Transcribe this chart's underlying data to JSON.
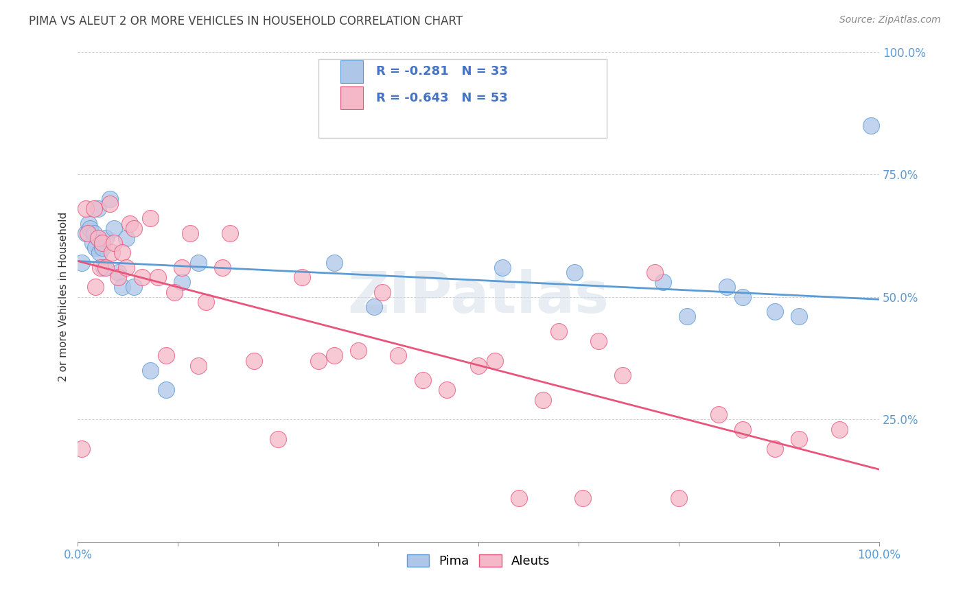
{
  "title": "PIMA VS ALEUT 2 OR MORE VEHICLES IN HOUSEHOLD CORRELATION CHART",
  "source": "Source: ZipAtlas.com",
  "ylabel": "2 or more Vehicles in Household",
  "watermark": "ZIPatlas",
  "pima_color": "#aec6e8",
  "aleut_color": "#f5b8c8",
  "pima_line_color": "#5b9bd5",
  "aleut_line_color": "#e8547a",
  "legend_text_color": "#4472c4",
  "pima_R": -0.281,
  "pima_N": 33,
  "aleut_R": -0.643,
  "aleut_N": 53,
  "xlim": [
    0,
    1
  ],
  "ylim": [
    0,
    1
  ],
  "xticks": [
    0,
    0.125,
    0.25,
    0.375,
    0.5,
    0.625,
    0.75,
    0.875,
    1.0
  ],
  "yticks": [
    0,
    0.25,
    0.5,
    0.75,
    1.0
  ],
  "pima_x": [
    0.005,
    0.01,
    0.013,
    0.015,
    0.018,
    0.02,
    0.022,
    0.025,
    0.027,
    0.03,
    0.032,
    0.035,
    0.04,
    0.045,
    0.05,
    0.055,
    0.06,
    0.07,
    0.09,
    0.11,
    0.13,
    0.15,
    0.32,
    0.37,
    0.53,
    0.62,
    0.73,
    0.76,
    0.81,
    0.83,
    0.87,
    0.9,
    0.99
  ],
  "pima_y": [
    0.57,
    0.63,
    0.65,
    0.64,
    0.61,
    0.63,
    0.6,
    0.68,
    0.59,
    0.6,
    0.56,
    0.62,
    0.7,
    0.64,
    0.55,
    0.52,
    0.62,
    0.52,
    0.35,
    0.31,
    0.53,
    0.57,
    0.57,
    0.48,
    0.56,
    0.55,
    0.53,
    0.46,
    0.52,
    0.5,
    0.47,
    0.46,
    0.85
  ],
  "aleut_x": [
    0.005,
    0.01,
    0.012,
    0.02,
    0.022,
    0.025,
    0.028,
    0.03,
    0.035,
    0.04,
    0.042,
    0.045,
    0.05,
    0.055,
    0.06,
    0.065,
    0.07,
    0.08,
    0.09,
    0.1,
    0.11,
    0.12,
    0.13,
    0.14,
    0.15,
    0.16,
    0.18,
    0.19,
    0.22,
    0.25,
    0.28,
    0.3,
    0.32,
    0.35,
    0.38,
    0.4,
    0.43,
    0.46,
    0.5,
    0.52,
    0.55,
    0.58,
    0.6,
    0.63,
    0.65,
    0.68,
    0.72,
    0.75,
    0.8,
    0.83,
    0.87,
    0.9,
    0.95
  ],
  "aleut_y": [
    0.19,
    0.68,
    0.63,
    0.68,
    0.52,
    0.62,
    0.56,
    0.61,
    0.56,
    0.69,
    0.59,
    0.61,
    0.54,
    0.59,
    0.56,
    0.65,
    0.64,
    0.54,
    0.66,
    0.54,
    0.38,
    0.51,
    0.56,
    0.63,
    0.36,
    0.49,
    0.56,
    0.63,
    0.37,
    0.21,
    0.54,
    0.37,
    0.38,
    0.39,
    0.51,
    0.38,
    0.33,
    0.31,
    0.36,
    0.37,
    0.09,
    0.29,
    0.43,
    0.09,
    0.41,
    0.34,
    0.55,
    0.09,
    0.26,
    0.23,
    0.19,
    0.21,
    0.23
  ]
}
